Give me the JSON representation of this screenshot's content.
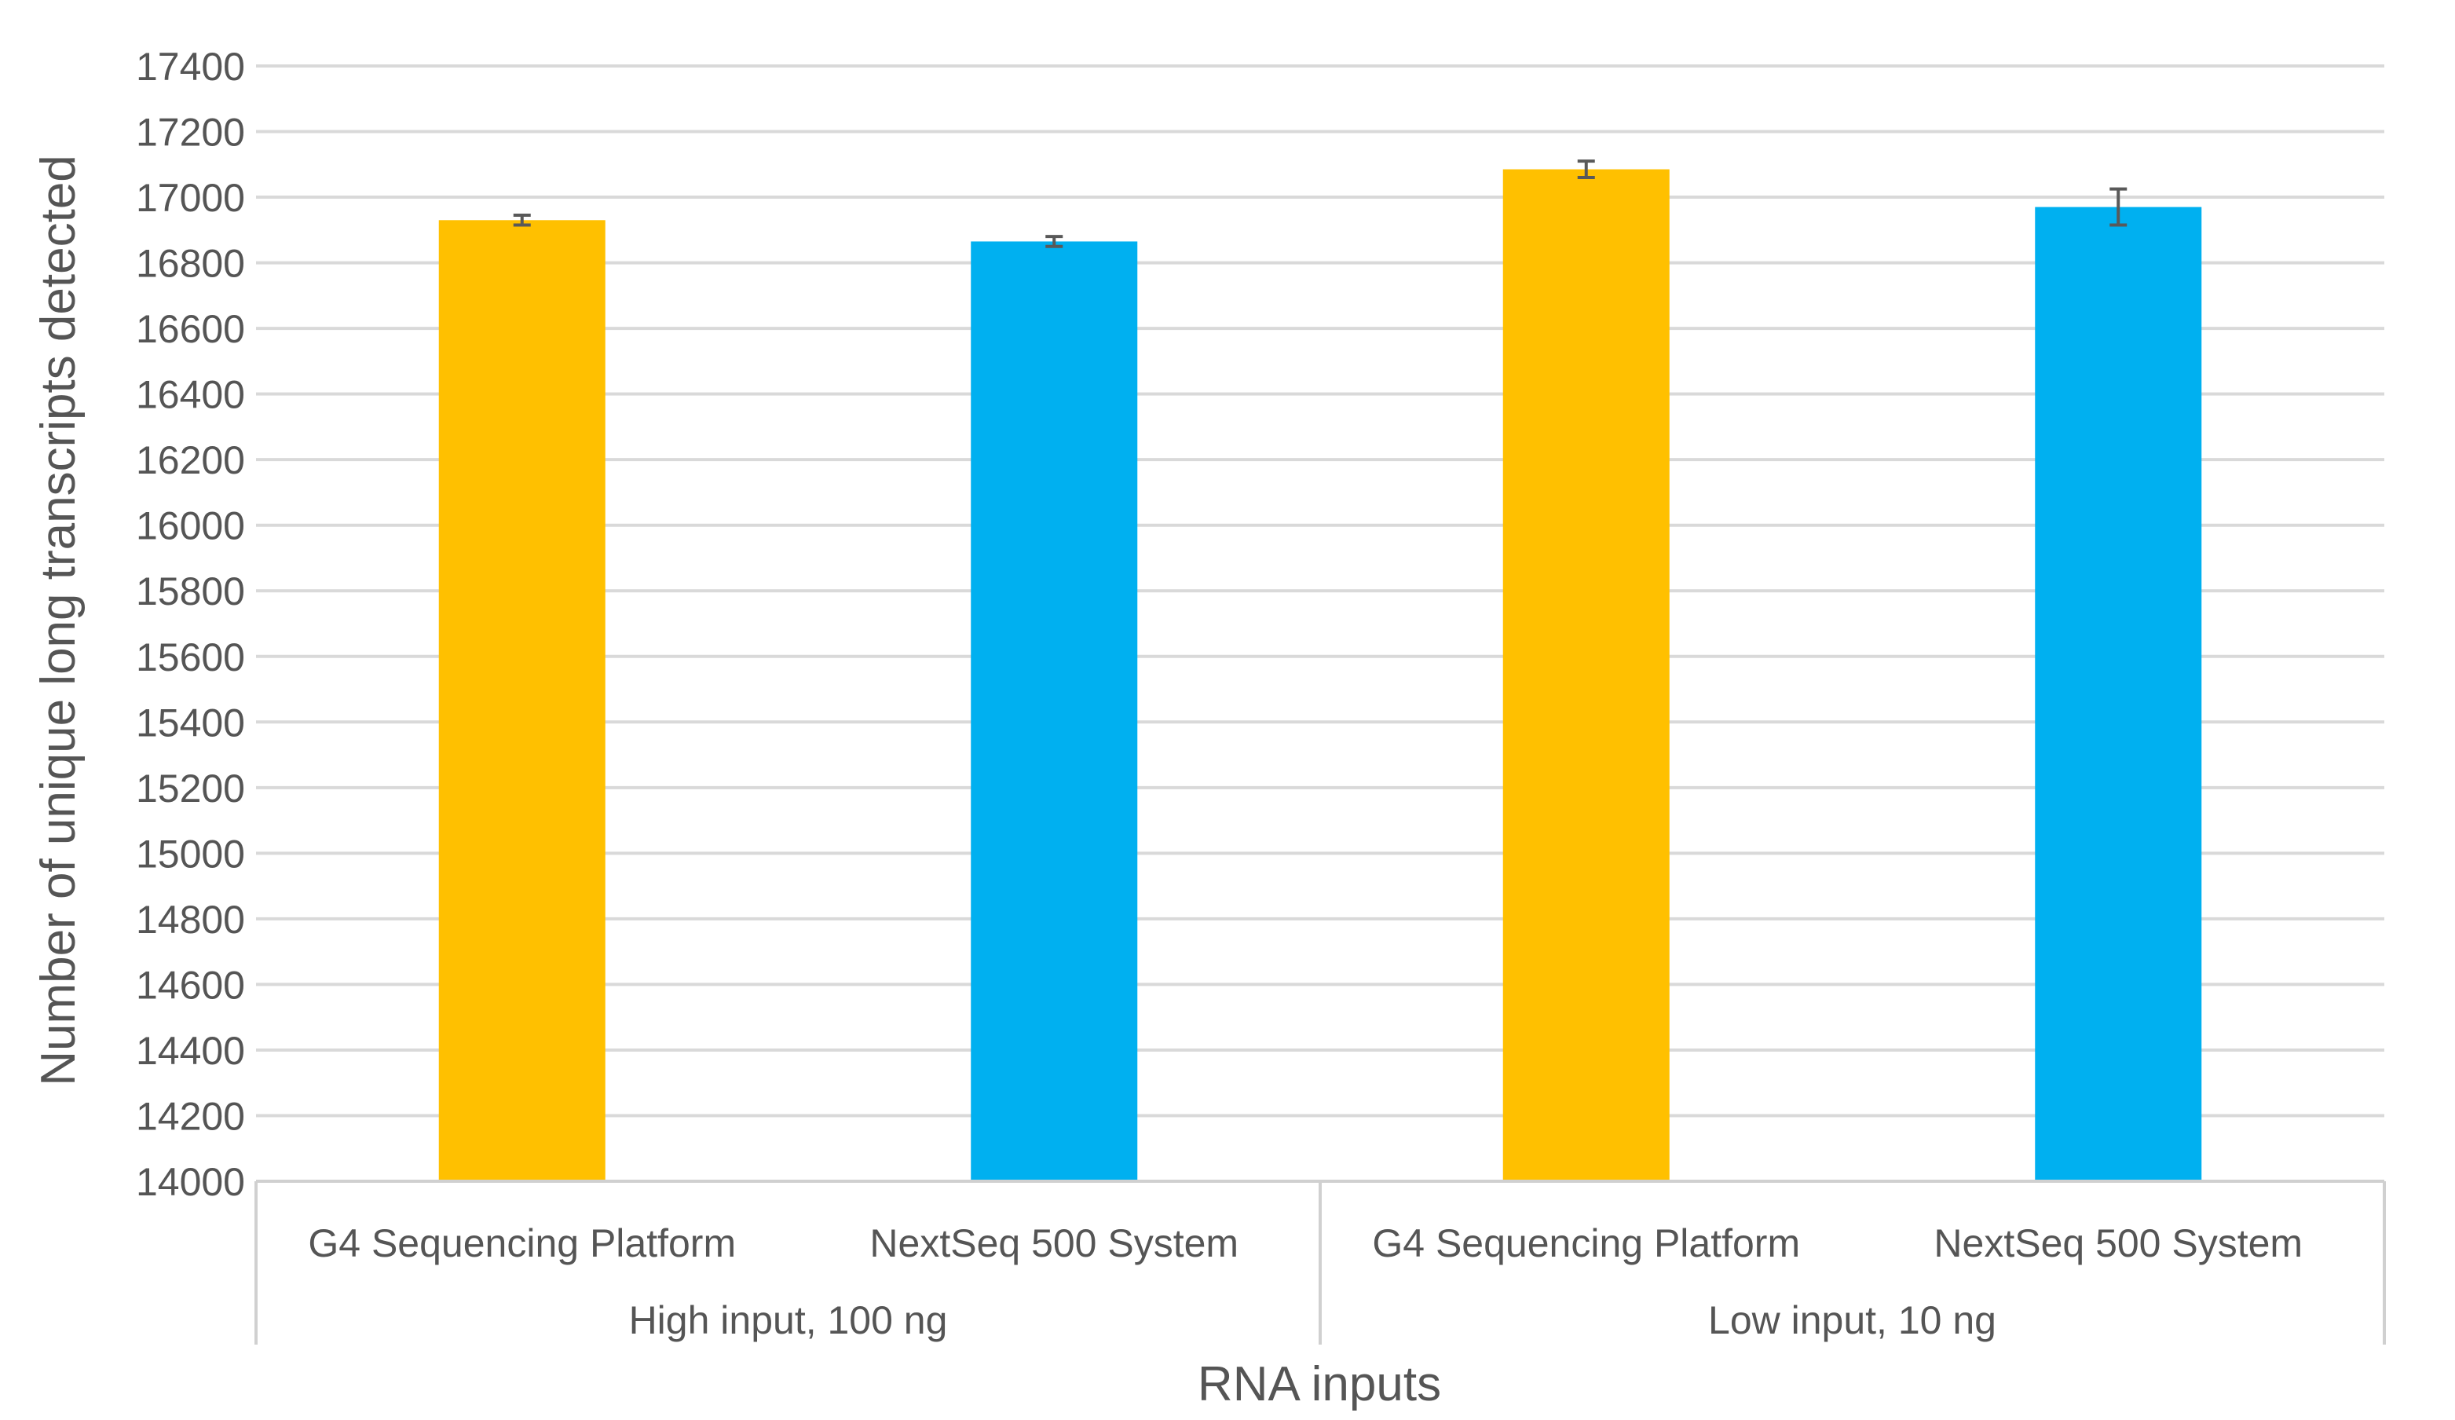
{
  "chart_data": {
    "type": "bar",
    "title": "",
    "xlabel": "RNA inputs",
    "ylabel": "Number of unique long transcripts detected",
    "ylim": [
      14000,
      17400
    ],
    "yticks": [
      14000,
      14200,
      14400,
      14600,
      14800,
      15000,
      15200,
      15400,
      15600,
      15800,
      16000,
      16200,
      16400,
      16600,
      16800,
      17000,
      17200,
      17400
    ],
    "grid": true,
    "legend": "none",
    "groups": [
      {
        "label": "High input, 100 ng",
        "bars": [
          {
            "category": "G4 Sequencing Platform",
            "value": 16930,
            "error": 15,
            "color": "#FFC000"
          },
          {
            "category": "NextSeq 500 System",
            "value": 16865,
            "error": 15,
            "color": "#00B0F0"
          }
        ]
      },
      {
        "label": "Low input, 10 ng",
        "bars": [
          {
            "category": "G4 Sequencing Platform",
            "value": 17085,
            "error": 25,
            "color": "#FFC000"
          },
          {
            "category": "NextSeq 500 System",
            "value": 16970,
            "error": 55,
            "color": "#00B0F0"
          }
        ]
      }
    ]
  }
}
